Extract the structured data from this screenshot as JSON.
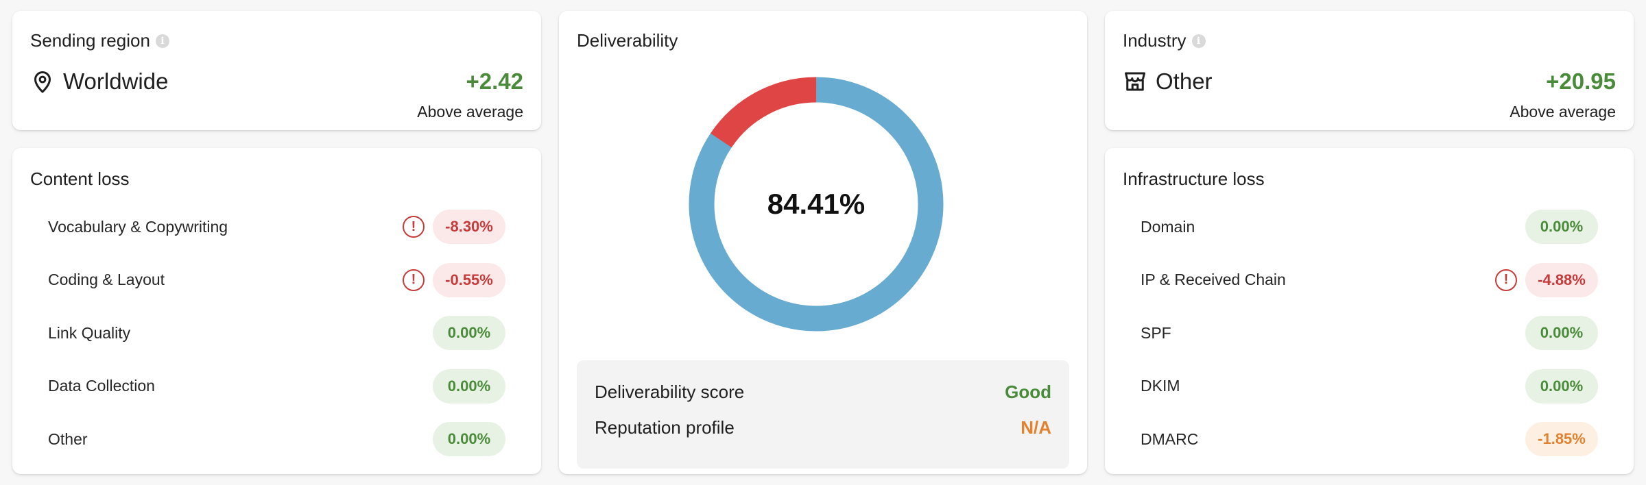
{
  "sending_region": {
    "title": "Sending region",
    "value": "Worldwide",
    "score": "+2.42",
    "note": "Above average"
  },
  "industry": {
    "title": "Industry",
    "value": "Other",
    "score": "+20.95",
    "note": "Above average"
  },
  "content_loss": {
    "title": "Content loss",
    "items": [
      {
        "label": "Vocabulary & Copywriting",
        "value": "-8.30%",
        "status": "red",
        "warning": true
      },
      {
        "label": "Coding & Layout",
        "value": "-0.55%",
        "status": "red",
        "warning": true
      },
      {
        "label": "Link Quality",
        "value": "0.00%",
        "status": "green",
        "warning": false
      },
      {
        "label": "Data Collection",
        "value": "0.00%",
        "status": "green",
        "warning": false
      },
      {
        "label": "Other",
        "value": "0.00%",
        "status": "green",
        "warning": false
      }
    ]
  },
  "infrastructure_loss": {
    "title": "Infrastructure loss",
    "items": [
      {
        "label": "Domain",
        "value": "0.00%",
        "status": "green",
        "warning": false
      },
      {
        "label": "IP & Received Chain",
        "value": "-4.88%",
        "status": "red",
        "warning": true
      },
      {
        "label": "SPF",
        "value": "0.00%",
        "status": "green",
        "warning": false
      },
      {
        "label": "DKIM",
        "value": "0.00%",
        "status": "green",
        "warning": false
      },
      {
        "label": "DMARC",
        "value": "-1.85%",
        "status": "orange",
        "warning": false
      }
    ]
  },
  "deliverability": {
    "title": "Deliverability",
    "percent_label": "84.41%",
    "percent": 84.41,
    "colors": {
      "good": "#67abd1",
      "loss": "#e04545"
    },
    "score_label": "Deliverability score",
    "score_value": "Good",
    "score_color": "#4a8b3a",
    "reputation_label": "Reputation profile",
    "reputation_value": "N/A",
    "reputation_color": "#e2822f"
  }
}
